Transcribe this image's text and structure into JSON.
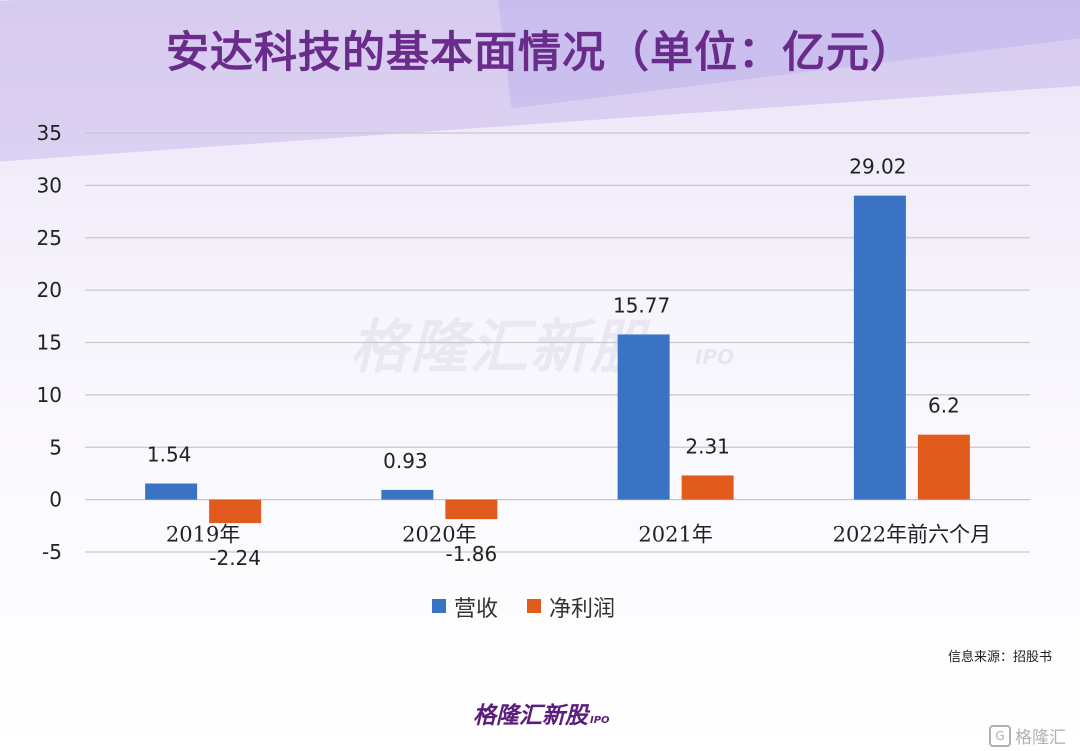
{
  "title": "安达科技的基本面情况（单位：亿元）",
  "watermark": "格隆汇新股",
  "watermark_suffix": "IPO",
  "source": "信息来源：招股书",
  "footer_logo": "格隆汇新股",
  "footer_logo_suffix": "IPO",
  "corner_logo": "格隆汇",
  "corner_logo_mark": "G",
  "colors": {
    "revenue": "#3a73c4",
    "profit": "#e15c1c",
    "title": "#6a2c8a",
    "grid": "#c8c8cc"
  },
  "chart_data": {
    "type": "bar",
    "categories": [
      "2019年",
      "2020年",
      "2021年",
      "2022年前六个月"
    ],
    "series": [
      {
        "name": "营收",
        "values": [
          1.54,
          0.93,
          15.77,
          29.02
        ],
        "labels": [
          "1.54",
          "0.93",
          "15.77",
          "29.02"
        ]
      },
      {
        "name": "净利润",
        "values": [
          -2.24,
          -1.86,
          2.31,
          6.2
        ],
        "labels": [
          "-2.24",
          "-1.86",
          "2.31",
          "6.2"
        ]
      }
    ],
    "title": "安达科技的基本面情况（单位：亿元）",
    "xlabel": "",
    "ylabel": "",
    "ylim": [
      -5,
      35
    ],
    "yticks": [
      "-5",
      "0",
      "5",
      "10",
      "15",
      "20",
      "25",
      "30",
      "35"
    ],
    "grid": true,
    "legend": "bottom"
  }
}
